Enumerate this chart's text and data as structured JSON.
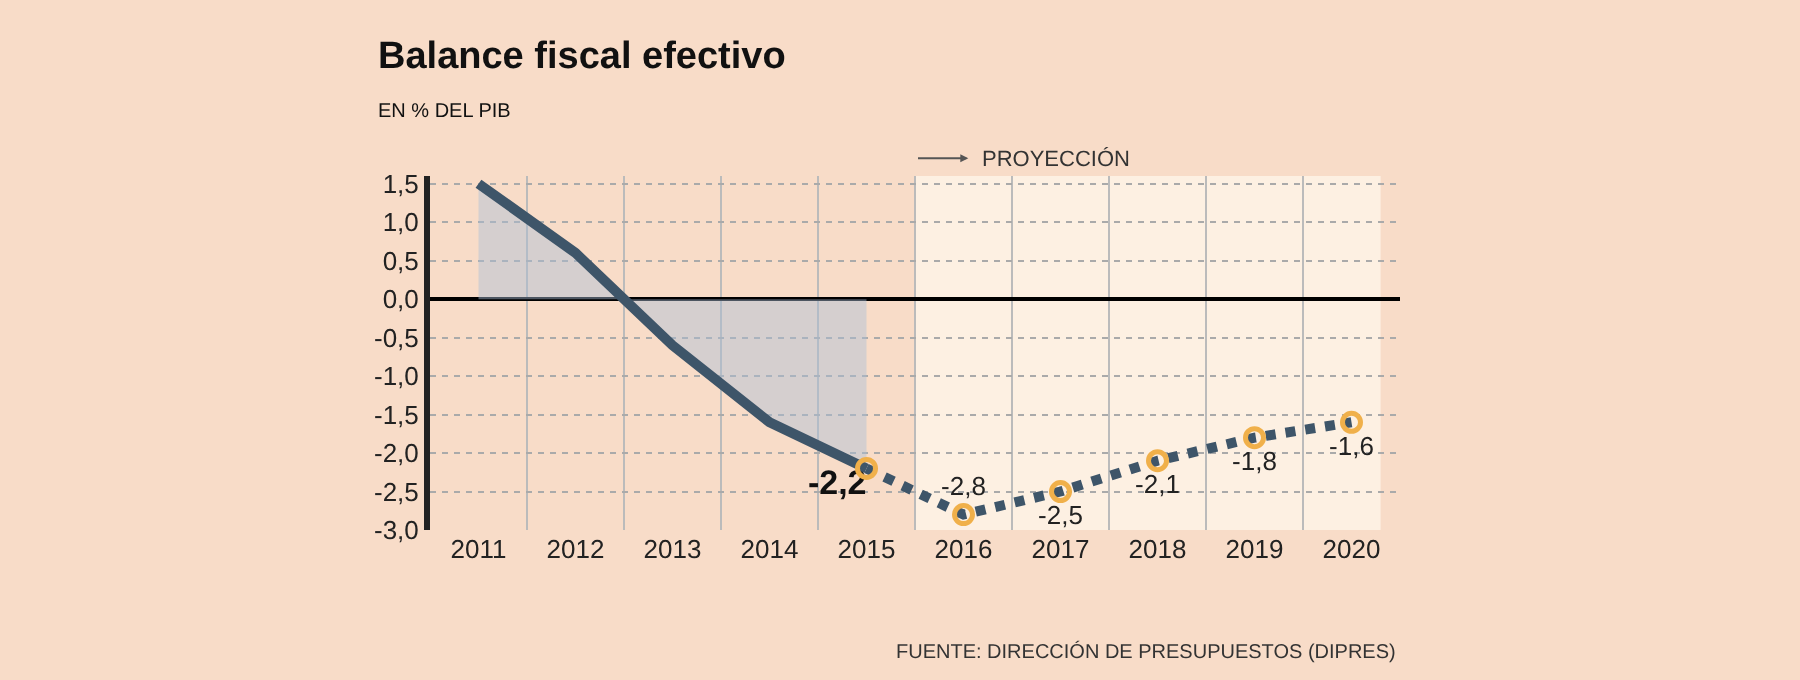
{
  "chart_data": {
    "type": "line",
    "title": "Balance fiscal efectivo",
    "subtitle": "EN % DEL PIB",
    "categories": [
      "2011",
      "2012",
      "2013",
      "2014",
      "2015",
      "2016",
      "2017",
      "2018",
      "2019",
      "2020"
    ],
    "series": [
      {
        "type": "area",
        "color": "#3e5569",
        "values": [
          1.5,
          0.6,
          -0.6,
          -1.6,
          -2.2,
          null,
          null,
          null,
          null,
          null
        ],
        "value_labels": [
          null,
          null,
          null,
          null,
          "-2,2",
          null,
          null,
          null,
          null,
          null
        ]
      },
      {
        "color": "#3e5569",
        "line_style": "dotted",
        "marker": "circle",
        "values": [
          null,
          null,
          null,
          null,
          -2.2,
          -2.8,
          -2.5,
          -2.1,
          -1.8,
          -1.6
        ],
        "value_labels": [
          null,
          null,
          null,
          null,
          null,
          "-2,8",
          "-2,5",
          "-2,1",
          "-1,8",
          "-1,6"
        ]
      }
    ],
    "ylim": [
      -3.0,
      1.6
    ],
    "yticks": [
      {
        "value": 1.5,
        "label": "1,5"
      },
      {
        "value": 1.0,
        "label": "1,0"
      },
      {
        "value": 0.5,
        "label": "0,5"
      },
      {
        "value": 0.0,
        "label": "0,0"
      },
      {
        "value": -0.5,
        "label": "-0,5"
      },
      {
        "value": -1.0,
        "label": "-1,0"
      },
      {
        "value": -1.5,
        "label": "-1,5"
      },
      {
        "value": -2.0,
        "label": "-2,0"
      },
      {
        "value": -2.5,
        "label": "-2,5"
      },
      {
        "value": -3.0,
        "label": "-3,0"
      }
    ],
    "bands": [
      {
        "axis": "x",
        "from": "2016",
        "to": "2020",
        "label": "PROYECCIÓN",
        "color": "#fdf0e2"
      }
    ],
    "grid": true,
    "annotations": [
      "FUENTE: DIRECCIÓN DE PRESUPUESTOS (DIPRES)"
    ]
  }
}
